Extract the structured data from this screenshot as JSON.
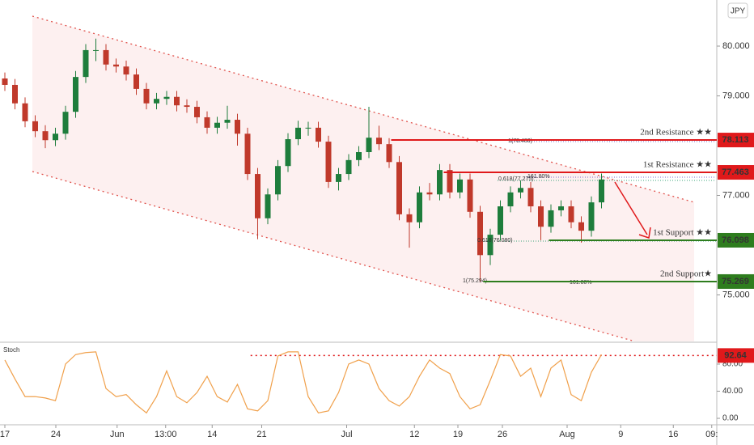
{
  "chart_data": [
    {
      "type": "candlestick",
      "unit": "JPY",
      "x": [
        0,
        1,
        2,
        3,
        4,
        5,
        6,
        7,
        8,
        9,
        10,
        11,
        12,
        13,
        14,
        15,
        16,
        17,
        18,
        19,
        20,
        21,
        22,
        23,
        24,
        25,
        26,
        27,
        28,
        29,
        30,
        31,
        32,
        33,
        34,
        35,
        36,
        37,
        38,
        39,
        40,
        41,
        42,
        43,
        44,
        45,
        46,
        47,
        48,
        49,
        50,
        51,
        52,
        53,
        54,
        55,
        56,
        57,
        58,
        59
      ],
      "open": [
        79.35,
        79.22,
        78.85,
        78.49,
        78.29,
        78.11,
        78.24,
        78.68,
        79.38,
        79.92,
        79.92,
        79.63,
        79.59,
        79.43,
        79.14,
        78.85,
        78.94,
        78.98,
        78.81,
        78.78,
        78.57,
        78.36,
        78.46,
        78.52,
        78.24,
        77.43,
        76.54,
        77.02,
        77.59,
        78.13,
        78.36,
        78.36,
        78.08,
        77.27,
        77.43,
        77.71,
        77.87,
        78.16,
        78.03,
        77.67,
        76.62,
        76.46,
        77.06,
        77.02,
        77.51,
        77.06,
        77.32,
        76.67,
        75.8,
        76.21,
        76.78,
        77.06,
        77.15,
        76.78,
        76.37,
        76.7,
        76.78,
        76.46,
        76.29,
        76.86
      ],
      "high": [
        79.47,
        79.34,
        78.97,
        78.61,
        78.41,
        78.36,
        78.8,
        79.5,
        80.04,
        80.15,
        80.04,
        79.75,
        79.71,
        79.55,
        79.26,
        79.06,
        79.1,
        79.1,
        78.93,
        78.9,
        78.69,
        78.58,
        78.8,
        78.64,
        78.36,
        77.55,
        77.14,
        77.71,
        78.25,
        78.5,
        78.48,
        78.48,
        78.2,
        77.55,
        77.83,
        77.99,
        78.78,
        78.4,
        78.15,
        77.79,
        76.74,
        77.18,
        77.25,
        77.63,
        77.63,
        77.44,
        77.44,
        76.79,
        76.33,
        76.9,
        77.18,
        77.3,
        77.27,
        76.9,
        76.82,
        76.9,
        76.9,
        76.58,
        76.98,
        77.44
      ],
      "low": [
        79.1,
        78.73,
        78.37,
        78.17,
        77.95,
        77.99,
        78.12,
        78.56,
        79.26,
        79.7,
        79.51,
        79.47,
        79.31,
        79.02,
        78.73,
        78.73,
        78.82,
        78.69,
        78.66,
        78.45,
        78.24,
        78.24,
        78.34,
        78.0,
        77.31,
        76.12,
        76.42,
        76.9,
        77.47,
        78.01,
        78.2,
        77.96,
        77.15,
        77.1,
        77.31,
        77.59,
        77.75,
        77.91,
        77.55,
        76.5,
        75.95,
        76.34,
        76.9,
        76.9,
        76.94,
        76.94,
        76.55,
        75.27,
        75.6,
        76.09,
        76.66,
        76.94,
        76.66,
        76.1,
        76.25,
        76.58,
        76.34,
        76.05,
        76.17,
        76.74
      ],
      "close": [
        79.22,
        78.85,
        78.49,
        78.29,
        78.11,
        78.24,
        78.68,
        79.38,
        79.92,
        79.92,
        79.63,
        79.59,
        79.43,
        79.14,
        78.85,
        78.94,
        78.98,
        78.81,
        78.78,
        78.57,
        78.36,
        78.46,
        78.52,
        78.24,
        77.43,
        76.54,
        77.02,
        77.59,
        78.13,
        78.36,
        78.36,
        78.08,
        77.27,
        77.43,
        77.71,
        77.87,
        78.16,
        78.03,
        77.67,
        76.62,
        76.46,
        77.06,
        77.02,
        77.51,
        77.06,
        77.32,
        76.67,
        75.8,
        76.21,
        76.78,
        77.06,
        77.15,
        76.78,
        76.37,
        76.7,
        76.78,
        76.46,
        76.29,
        76.86,
        77.32
      ],
      "up_color": "#1e7d3c",
      "down_color": "#c0392b",
      "xlim": [
        -0.48,
        70.32
      ],
      "ylim": [
        74.065,
        80.927
      ],
      "yticks": [
        {
          "value": 80,
          "label": "80.000"
        },
        {
          "value": 79,
          "label": "79.000"
        },
        {
          "value": 77,
          "label": "77.000"
        },
        {
          "value": 75,
          "label": "75.000"
        }
      ],
      "levels": [
        {
          "name": "2nd Resistance ★★",
          "value": 78.113,
          "from": 38.2,
          "color": "#e0191b"
        },
        {
          "name": "1st Resistance ★★",
          "value": 77.463,
          "from": 43.4,
          "color": "#e0191b"
        },
        {
          "name": "1st Support ★★",
          "value": 76.098,
          "from": 53.8,
          "color": "#2e7d1e"
        },
        {
          "name": "2nd Support★",
          "value": 75.269,
          "from": 47.3,
          "color": "#2e7d1e"
        }
      ],
      "annotations": [
        "1(78.480)",
        "0.618(77.275)",
        "161.80%",
        "0.618(76.080)",
        "1(75.294)",
        "161.80%"
      ]
    },
    {
      "type": "line",
      "title": "Stoch",
      "color": "#f0a04b",
      "x": [
        0,
        1,
        2,
        3,
        4,
        5,
        6,
        7,
        8,
        9,
        10,
        11,
        12,
        13,
        14,
        15,
        16,
        17,
        18,
        19,
        20,
        21,
        22,
        23,
        24,
        25,
        26,
        27,
        28,
        29,
        30,
        31,
        32,
        33,
        34,
        35,
        36,
        37,
        38,
        39,
        40,
        41,
        42,
        43,
        44,
        45,
        46,
        47,
        48,
        49,
        50,
        51,
        52,
        53,
        54,
        55,
        56,
        57,
        58,
        59
      ],
      "values": [
        86,
        58,
        32,
        32,
        30,
        26,
        80,
        94,
        97,
        98,
        44,
        32,
        35,
        20,
        8,
        32,
        70,
        32,
        23,
        38,
        62,
        32,
        24,
        50,
        14,
        11,
        26,
        92,
        98,
        98,
        32,
        8,
        11,
        38,
        80,
        86,
        80,
        44,
        26,
        18,
        32,
        62,
        86,
        74,
        66,
        32,
        14,
        20,
        56,
        94,
        92,
        62,
        74,
        32,
        74,
        86,
        35,
        26,
        68,
        94
      ],
      "xlim": [
        -0.48,
        70.32
      ],
      "ylim": [
        -9.5,
        111
      ],
      "yticks": [
        {
          "value": 80,
          "label": "80.00"
        },
        {
          "value": 40,
          "label": "40.00"
        },
        {
          "value": 0,
          "label": "0.00"
        }
      ],
      "xticks": [
        {
          "value": 0,
          "label": "17"
        },
        {
          "value": 5.04,
          "label": "24"
        },
        {
          "value": 11.1,
          "label": "Jun"
        },
        {
          "value": 15.9,
          "label": "13:00"
        },
        {
          "value": 20.5,
          "label": "14"
        },
        {
          "value": 25.4,
          "label": "21"
        },
        {
          "value": 33.8,
          "label": "Jul"
        },
        {
          "value": 40.5,
          "label": "12"
        },
        {
          "value": 44.8,
          "label": "19"
        },
        {
          "value": 49.2,
          "label": "26"
        },
        {
          "value": 55.6,
          "label": "Aug"
        },
        {
          "value": 60.9,
          "label": "9"
        },
        {
          "value": 66.1,
          "label": "16"
        },
        {
          "value": 69.9,
          "label": "09:"
        }
      ],
      "level": {
        "value": 92.64,
        "from": 24.3,
        "color": "#e0191b"
      }
    }
  ]
}
